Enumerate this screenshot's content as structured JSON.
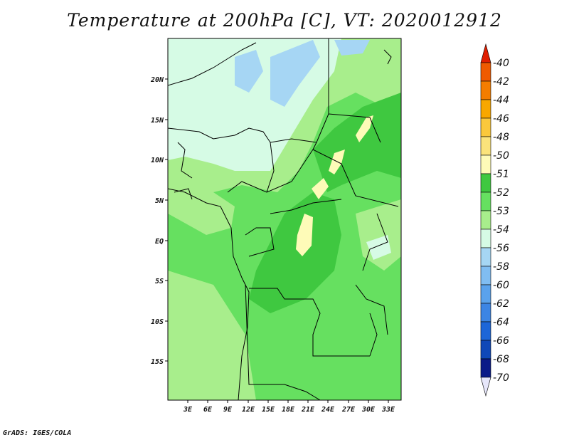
{
  "title": "Temperature at 200hPa [C], VT: 2020012912",
  "credit": "GrADS: IGES/COLA",
  "map": {
    "lat_labels": [
      "20N",
      "15N",
      "10N",
      "5N",
      "EQ",
      "5S",
      "10S",
      "15S"
    ],
    "lon_labels": [
      "3E",
      "6E",
      "9E",
      "12E",
      "15E",
      "18E",
      "21E",
      "24E",
      "27E",
      "30E",
      "33E"
    ]
  },
  "colorbar": {
    "labels": [
      "-40",
      "-42",
      "-44",
      "-46",
      "-48",
      "-50",
      "-51",
      "-52",
      "-53",
      "-54",
      "-56",
      "-58",
      "-60",
      "-62",
      "-64",
      "-66",
      "-68",
      "-70"
    ],
    "colors": [
      "#e01e00",
      "#ef5a00",
      "#f47d00",
      "#f8a700",
      "#fbc83c",
      "#fbe37b",
      "#fefbb8",
      "#3fc840",
      "#66e060",
      "#a8ee8c",
      "#d6fbe5",
      "#a6d6f4",
      "#80bdf2",
      "#5aa2ec",
      "#3c85e4",
      "#1d66d8",
      "#0f48b8",
      "#0a1a88",
      "#e6e6fa"
    ]
  }
}
